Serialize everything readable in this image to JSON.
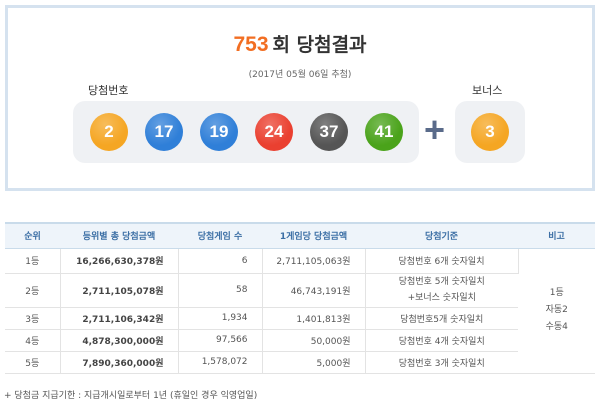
{
  "header": {
    "round": "753",
    "title": "회 당첨결과",
    "date": "(2017년 05월 06일 추첨)"
  },
  "winning_label": "당첨번호",
  "bonus_label": "보너스",
  "numbers": [
    {
      "value": "2",
      "color": "#f5a623"
    },
    {
      "value": "17",
      "color": "#2f7fd8"
    },
    {
      "value": "19",
      "color": "#2f7fd8"
    },
    {
      "value": "24",
      "color": "#ea4030"
    },
    {
      "value": "37",
      "color": "#555555"
    },
    {
      "value": "41",
      "color": "#4aa31a"
    }
  ],
  "plus_symbol": "+",
  "bonus": {
    "value": "3",
    "color": "#f5a623"
  },
  "table": {
    "headers": [
      "순위",
      "등위별 총 당첨금액",
      "당첨게임 수",
      "1게임당 당첨금액",
      "당첨기준",
      "비고"
    ],
    "rows": [
      {
        "rank": "1등",
        "total": "16,266,630,378원",
        "count": "6",
        "per_game": "2,711,105,063원",
        "criteria": "당첨번호 6개 숫자일치"
      },
      {
        "rank": "2등",
        "total": "2,711,105,078원",
        "count": "58",
        "per_game": "46,743,191원",
        "criteria": "당첨번호 5개 숫자일치",
        "criteria2": "+보너스 숫자일치"
      },
      {
        "rank": "3등",
        "total": "2,711,106,342원",
        "count": "1,934",
        "per_game": "1,401,813원",
        "criteria": "당첨번호5개 숫자일치"
      },
      {
        "rank": "4등",
        "total": "4,878,300,000원",
        "count": "97,566",
        "per_game": "50,000원",
        "criteria": "당첨번호 4개 숫자일치"
      },
      {
        "rank": "5등",
        "total": "7,890,360,000원",
        "count": "1,578,072",
        "per_game": "5,000원",
        "criteria": "당첨번호 3개 숫자일치"
      }
    ],
    "remark": [
      "1등",
      "자동2",
      "수동4"
    ]
  },
  "footnote": "+ 당첨금 지급기한 : 지급개시일로부터 1년 (휴일인 경우 익영업일)"
}
